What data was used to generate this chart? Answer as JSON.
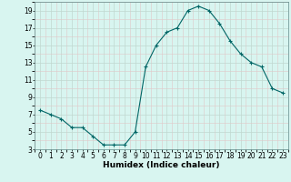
{
  "x": [
    0,
    1,
    2,
    3,
    4,
    5,
    6,
    7,
    8,
    9,
    10,
    11,
    12,
    13,
    14,
    15,
    16,
    17,
    18,
    19,
    20,
    21,
    22,
    23
  ],
  "y": [
    7.5,
    7.0,
    6.5,
    5.5,
    5.5,
    4.5,
    3.5,
    3.5,
    3.5,
    5.0,
    12.5,
    15.0,
    16.5,
    17.0,
    19.0,
    19.5,
    19.0,
    17.5,
    15.5,
    14.0,
    13.0,
    12.5,
    10.0,
    9.5
  ],
  "line_color": "#006666",
  "marker": "+",
  "marker_size": 3,
  "marker_lw": 0.8,
  "line_width": 0.8,
  "bg_color": "#d8f5f0",
  "grid_major_color": "#c0d8d0",
  "grid_minor_color": "#e0c8c8",
  "xlabel": "Humidex (Indice chaleur)",
  "xlim": [
    -0.5,
    23.5
  ],
  "ylim": [
    3,
    20
  ],
  "yticks": [
    3,
    5,
    7,
    9,
    11,
    13,
    15,
    17,
    19
  ],
  "xticks": [
    0,
    1,
    2,
    3,
    4,
    5,
    6,
    7,
    8,
    9,
    10,
    11,
    12,
    13,
    14,
    15,
    16,
    17,
    18,
    19,
    20,
    21,
    22,
    23
  ],
  "label_fontsize": 6.5,
  "tick_fontsize": 5.5
}
